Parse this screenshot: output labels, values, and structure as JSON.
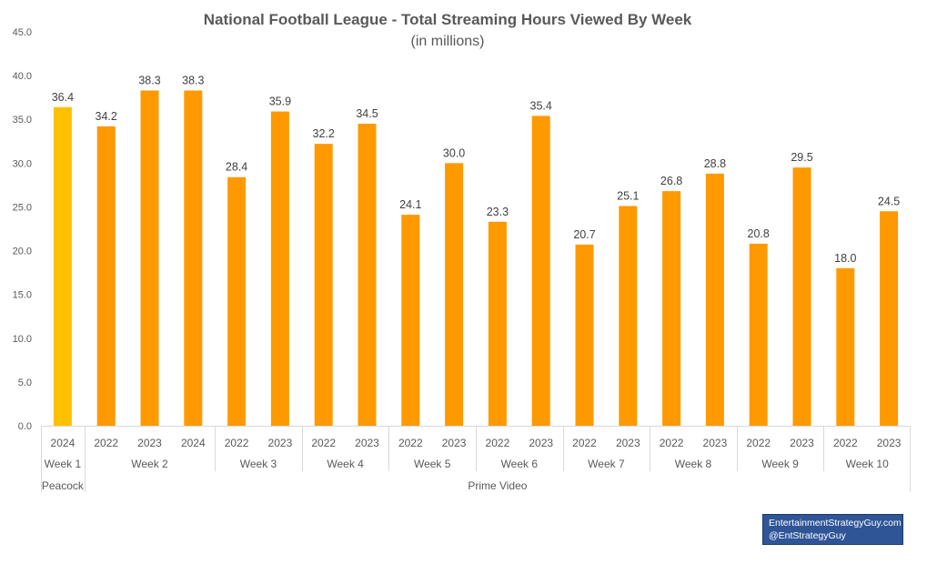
{
  "chart_data": {
    "type": "bar",
    "title": "National Football League - Total Streaming Hours Viewed By Week",
    "subtitle": "(in millions)",
    "ylim": [
      0,
      45
    ],
    "yticks": [
      "0.0",
      "5.0",
      "10.0",
      "15.0",
      "20.0",
      "25.0",
      "30.0",
      "35.0",
      "40.0",
      "45.0"
    ],
    "grid": false,
    "colors": {
      "Peacock": "#ffc000",
      "Prime Video": "#ff9900"
    },
    "platforms": [
      {
        "name": "Peacock",
        "weeks": [
          "Week 1"
        ]
      },
      {
        "name": "Prime Video",
        "weeks": [
          "Week 2",
          "Week 3",
          "Week 4",
          "Week 5",
          "Week 6",
          "Week 7",
          "Week 8",
          "Week 9",
          "Week 10"
        ]
      }
    ],
    "weeks": [
      {
        "name": "Week 1",
        "platform": "Peacock",
        "bars": [
          {
            "year": "2024",
            "value": 36.4,
            "label": "36.4"
          }
        ]
      },
      {
        "name": "Week 2",
        "platform": "Prime Video",
        "bars": [
          {
            "year": "2022",
            "value": 34.2,
            "label": "34.2"
          },
          {
            "year": "2023",
            "value": 38.3,
            "label": "38.3"
          },
          {
            "year": "2024",
            "value": 38.3,
            "label": "38.3"
          }
        ]
      },
      {
        "name": "Week 3",
        "platform": "Prime Video",
        "bars": [
          {
            "year": "2022",
            "value": 28.4,
            "label": "28.4"
          },
          {
            "year": "2023",
            "value": 35.9,
            "label": "35.9"
          }
        ]
      },
      {
        "name": "Week 4",
        "platform": "Prime Video",
        "bars": [
          {
            "year": "2022",
            "value": 32.2,
            "label": "32.2"
          },
          {
            "year": "2023",
            "value": 34.5,
            "label": "34.5"
          }
        ]
      },
      {
        "name": "Week 5",
        "platform": "Prime Video",
        "bars": [
          {
            "year": "2022",
            "value": 24.1,
            "label": "24.1"
          },
          {
            "year": "2023",
            "value": 30.0,
            "label": "30.0"
          }
        ]
      },
      {
        "name": "Week 6",
        "platform": "Prime Video",
        "bars": [
          {
            "year": "2022",
            "value": 23.3,
            "label": "23.3"
          },
          {
            "year": "2023",
            "value": 35.4,
            "label": "35.4"
          }
        ]
      },
      {
        "name": "Week 7",
        "platform": "Prime Video",
        "bars": [
          {
            "year": "2022",
            "value": 20.7,
            "label": "20.7"
          },
          {
            "year": "2023",
            "value": 25.1,
            "label": "25.1"
          }
        ]
      },
      {
        "name": "Week 8",
        "platform": "Prime Video",
        "bars": [
          {
            "year": "2022",
            "value": 26.8,
            "label": "26.8"
          },
          {
            "year": "2023",
            "value": 28.8,
            "label": "28.8"
          }
        ]
      },
      {
        "name": "Week 9",
        "platform": "Prime Video",
        "bars": [
          {
            "year": "2022",
            "value": 20.8,
            "label": "20.8"
          },
          {
            "year": "2023",
            "value": 29.5,
            "label": "29.5"
          }
        ]
      },
      {
        "name": "Week 10",
        "platform": "Prime Video",
        "bars": [
          {
            "year": "2022",
            "value": 18.0,
            "label": "18.0"
          },
          {
            "year": "2023",
            "value": 24.5,
            "label": "24.5"
          }
        ]
      }
    ]
  },
  "credit": {
    "line1": "EntertainmentStrategyGuy.com",
    "line2": "@EntStrategyGuy"
  }
}
